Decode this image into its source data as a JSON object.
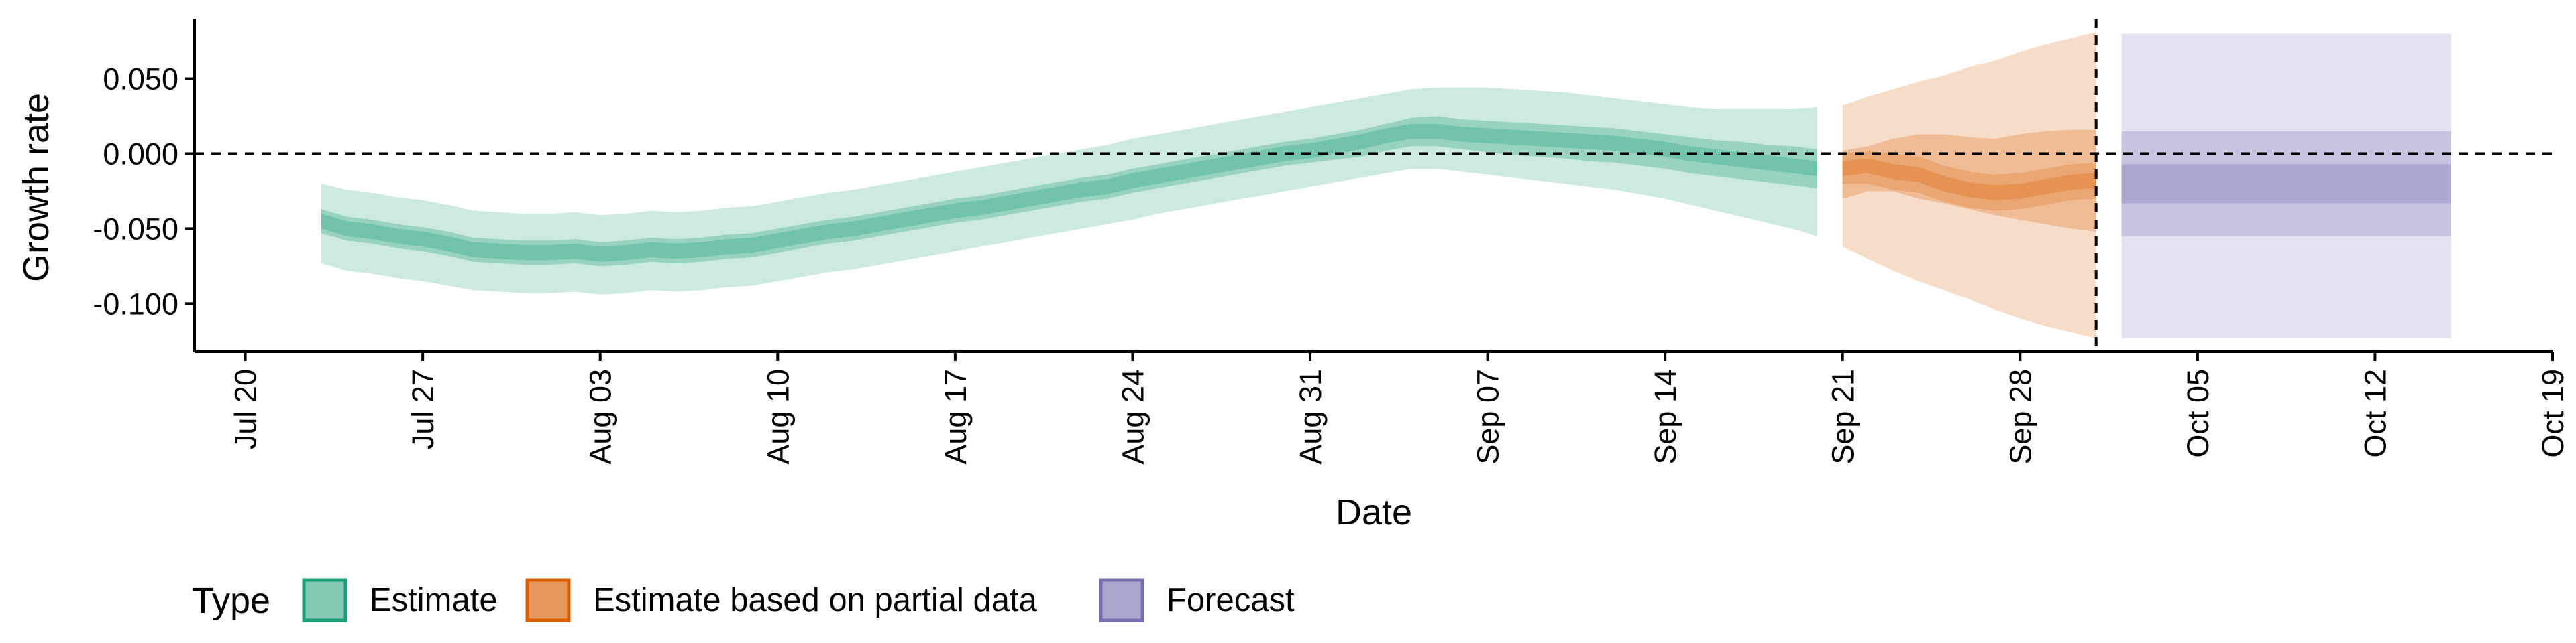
{
  "chart_data": {
    "type": "area",
    "xlabel": "Date",
    "ylabel": "Growth rate",
    "xlim": [
      "2020-07-18",
      "2020-10-19"
    ],
    "ylim": [
      -0.132,
      0.09
    ],
    "x_ticks": [
      "Jul 20",
      "Jul 27",
      "Aug 03",
      "Aug 10",
      "Aug 17",
      "Aug 24",
      "Aug 31",
      "Sep 07",
      "Sep 14",
      "Sep 21",
      "Sep 28",
      "Oct 05",
      "Oct 12",
      "Oct 19"
    ],
    "y_ticks": [
      "0.050",
      "0.000",
      "-0.050",
      "-0.100"
    ],
    "reference_lines": {
      "horizontal_y": 0,
      "vertical_date": "2020-10-01",
      "style": "dashed"
    },
    "legend": {
      "title": "Type",
      "placement": "bottom-left"
    },
    "series": [
      {
        "name": "Estimate",
        "color": "#1b9e77",
        "x": [
          "2020-07-23",
          "2020-07-24",
          "2020-07-25",
          "2020-07-26",
          "2020-07-27",
          "2020-07-28",
          "2020-07-29",
          "2020-07-30",
          "2020-07-31",
          "2020-08-01",
          "2020-08-02",
          "2020-08-03",
          "2020-08-04",
          "2020-08-05",
          "2020-08-06",
          "2020-08-07",
          "2020-08-08",
          "2020-08-09",
          "2020-08-10",
          "2020-08-11",
          "2020-08-12",
          "2020-08-13",
          "2020-08-14",
          "2020-08-15",
          "2020-08-16",
          "2020-08-17",
          "2020-08-18",
          "2020-08-19",
          "2020-08-20",
          "2020-08-21",
          "2020-08-22",
          "2020-08-23",
          "2020-08-24",
          "2020-08-25",
          "2020-08-26",
          "2020-08-27",
          "2020-08-28",
          "2020-08-29",
          "2020-08-30",
          "2020-08-31",
          "2020-09-01",
          "2020-09-02",
          "2020-09-03",
          "2020-09-04",
          "2020-09-05",
          "2020-09-06",
          "2020-09-07",
          "2020-09-08",
          "2020-09-09",
          "2020-09-10",
          "2020-09-11",
          "2020-09-12",
          "2020-09-13",
          "2020-09-14",
          "2020-09-15",
          "2020-09-16",
          "2020-09-17",
          "2020-09-18",
          "2020-09-19",
          "2020-09-20"
        ],
        "median": [
          -0.045,
          -0.05,
          -0.052,
          -0.055,
          -0.057,
          -0.06,
          -0.064,
          -0.065,
          -0.066,
          -0.066,
          -0.065,
          -0.067,
          -0.066,
          -0.064,
          -0.065,
          -0.064,
          -0.062,
          -0.061,
          -0.058,
          -0.055,
          -0.052,
          -0.05,
          -0.047,
          -0.044,
          -0.041,
          -0.038,
          -0.036,
          -0.033,
          -0.03,
          -0.027,
          -0.024,
          -0.022,
          -0.018,
          -0.015,
          -0.012,
          -0.009,
          -0.006,
          -0.003,
          0.0,
          0.002,
          0.005,
          0.008,
          0.012,
          0.015,
          0.015,
          0.013,
          0.012,
          0.011,
          0.01,
          0.009,
          0.008,
          0.007,
          0.005,
          0.003,
          0.0,
          -0.002,
          -0.004,
          -0.006,
          -0.008,
          -0.01
        ],
        "lower_50": [
          -0.053,
          -0.058,
          -0.06,
          -0.063,
          -0.065,
          -0.068,
          -0.072,
          -0.073,
          -0.074,
          -0.074,
          -0.073,
          -0.075,
          -0.074,
          -0.072,
          -0.073,
          -0.072,
          -0.07,
          -0.069,
          -0.066,
          -0.063,
          -0.06,
          -0.058,
          -0.055,
          -0.052,
          -0.049,
          -0.046,
          -0.044,
          -0.041,
          -0.038,
          -0.035,
          -0.032,
          -0.03,
          -0.026,
          -0.023,
          -0.02,
          -0.017,
          -0.014,
          -0.011,
          -0.008,
          -0.006,
          -0.004,
          -0.002,
          0.002,
          0.005,
          0.005,
          0.003,
          0.001,
          -0.001,
          -0.002,
          -0.003,
          -0.005,
          -0.006,
          -0.008,
          -0.01,
          -0.013,
          -0.015,
          -0.017,
          -0.019,
          -0.021,
          -0.023
        ],
        "upper_50": [
          -0.037,
          -0.042,
          -0.044,
          -0.047,
          -0.049,
          -0.052,
          -0.056,
          -0.057,
          -0.058,
          -0.058,
          -0.057,
          -0.059,
          -0.058,
          -0.056,
          -0.057,
          -0.056,
          -0.054,
          -0.053,
          -0.05,
          -0.047,
          -0.044,
          -0.042,
          -0.039,
          -0.036,
          -0.033,
          -0.03,
          -0.028,
          -0.025,
          -0.022,
          -0.019,
          -0.016,
          -0.014,
          -0.01,
          -0.007,
          -0.004,
          -0.001,
          0.002,
          0.005,
          0.008,
          0.01,
          0.013,
          0.016,
          0.02,
          0.024,
          0.025,
          0.023,
          0.022,
          0.021,
          0.02,
          0.019,
          0.018,
          0.017,
          0.015,
          0.013,
          0.011,
          0.009,
          0.008,
          0.006,
          0.005,
          0.003
        ],
        "lower_90": [
          -0.073,
          -0.078,
          -0.08,
          -0.083,
          -0.085,
          -0.088,
          -0.091,
          -0.092,
          -0.093,
          -0.093,
          -0.092,
          -0.094,
          -0.093,
          -0.091,
          -0.092,
          -0.091,
          -0.089,
          -0.088,
          -0.085,
          -0.082,
          -0.079,
          -0.077,
          -0.074,
          -0.071,
          -0.068,
          -0.065,
          -0.062,
          -0.059,
          -0.056,
          -0.053,
          -0.05,
          -0.047,
          -0.044,
          -0.04,
          -0.037,
          -0.034,
          -0.031,
          -0.028,
          -0.025,
          -0.022,
          -0.019,
          -0.016,
          -0.013,
          -0.01,
          -0.01,
          -0.012,
          -0.014,
          -0.016,
          -0.018,
          -0.02,
          -0.022,
          -0.024,
          -0.027,
          -0.03,
          -0.034,
          -0.038,
          -0.042,
          -0.046,
          -0.05,
          -0.055
        ],
        "upper_90": [
          -0.02,
          -0.024,
          -0.026,
          -0.029,
          -0.031,
          -0.034,
          -0.038,
          -0.039,
          -0.04,
          -0.04,
          -0.039,
          -0.041,
          -0.04,
          -0.038,
          -0.039,
          -0.038,
          -0.036,
          -0.035,
          -0.032,
          -0.029,
          -0.026,
          -0.024,
          -0.021,
          -0.018,
          -0.015,
          -0.012,
          -0.009,
          -0.006,
          -0.003,
          0.0,
          0.003,
          0.006,
          0.01,
          0.013,
          0.016,
          0.019,
          0.022,
          0.025,
          0.028,
          0.031,
          0.034,
          0.037,
          0.04,
          0.043,
          0.044,
          0.044,
          0.044,
          0.043,
          0.042,
          0.041,
          0.039,
          0.037,
          0.035,
          0.033,
          0.031,
          0.03,
          0.03,
          0.03,
          0.03,
          0.031
        ]
      },
      {
        "name": "Estimate based on partial data",
        "color": "#d95f02",
        "x": [
          "2020-09-21",
          "2020-09-22",
          "2020-09-23",
          "2020-09-24",
          "2020-09-25",
          "2020-09-26",
          "2020-09-27",
          "2020-09-28",
          "2020-09-29",
          "2020-09-30",
          "2020-10-01"
        ],
        "median": [
          -0.01,
          -0.008,
          -0.012,
          -0.014,
          -0.02,
          -0.024,
          -0.026,
          -0.025,
          -0.022,
          -0.019,
          -0.018
        ],
        "lower_50": [
          -0.02,
          -0.02,
          -0.024,
          -0.026,
          -0.032,
          -0.036,
          -0.038,
          -0.037,
          -0.034,
          -0.031,
          -0.03
        ],
        "upper_50": [
          0.0,
          0.002,
          0.0,
          -0.002,
          -0.008,
          -0.012,
          -0.014,
          -0.013,
          -0.01,
          -0.007,
          -0.006
        ],
        "lower_90": [
          -0.03,
          -0.025,
          -0.025,
          -0.03,
          -0.033,
          -0.037,
          -0.041,
          -0.044,
          -0.047,
          -0.05,
          -0.052
        ],
        "upper_90": [
          0.002,
          0.005,
          0.01,
          0.013,
          0.013,
          0.011,
          0.01,
          0.013,
          0.015,
          0.016,
          0.016
        ],
        "lower_outer": [
          -0.062,
          -0.07,
          -0.078,
          -0.085,
          -0.091,
          -0.097,
          -0.104,
          -0.11,
          -0.115,
          -0.119,
          -0.123
        ],
        "upper_outer": [
          0.032,
          0.038,
          0.043,
          0.048,
          0.052,
          0.058,
          0.062,
          0.068,
          0.073,
          0.077,
          0.081
        ]
      },
      {
        "name": "Forecast",
        "color": "#7570b3",
        "x": [
          "2020-10-02",
          "2020-10-15"
        ],
        "median_range": [
          -0.033,
          -0.007
        ],
        "lower_50": -0.055,
        "upper_50": 0.015,
        "lower_90": -0.123,
        "upper_90": 0.08
      }
    ]
  }
}
